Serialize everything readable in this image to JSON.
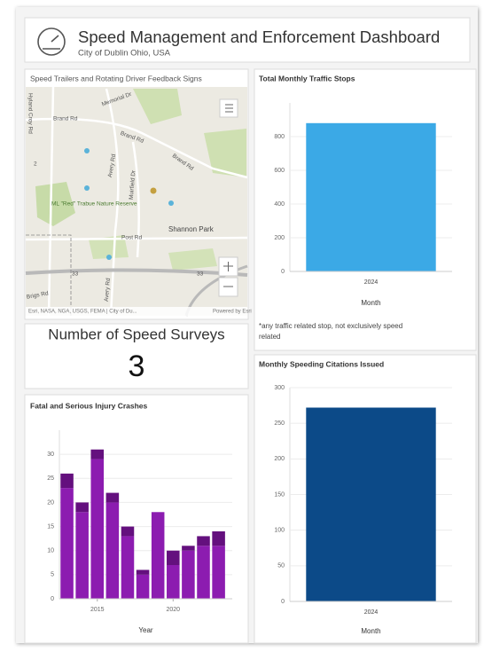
{
  "header": {
    "title": "Speed Management and Enforcement Dashboard",
    "subtitle": "City of Dublin Ohio, USA"
  },
  "map": {
    "title": "Speed Trailers and Rotating Driver Feedback Signs",
    "labels": [
      "Memorial Dr",
      "Brand Rd",
      "Brand Rd",
      "Brand Rd",
      "Hyland Croy Rd",
      "Avery Rd",
      "Muirfield Dr",
      "ML \"Red\" Trabue Nature Reserve",
      "Shannon Park",
      "Post Rd",
      "33",
      "33",
      "Avery Rd",
      "Brigs Rd",
      "2"
    ],
    "attribution": "Esri, NASA, NGA, USGS, FEMA | City of Du...",
    "powered_by": "Powered by Esri"
  },
  "indicator": {
    "title": "Number of Speed Surveys",
    "value": 3
  },
  "chart_data": [
    {
      "type": "bar",
      "title": "Total Monthly Traffic Stops",
      "categories": [
        "2024"
      ],
      "values": [
        880
      ],
      "color": "#3ba9e6",
      "ylim": [
        0,
        1000
      ],
      "yticks": [
        0,
        200,
        400,
        600,
        800
      ],
      "x_label": "Month",
      "grid": true,
      "note": "*any traffic related stop, not exclusively speed related"
    },
    {
      "type": "bar",
      "title": "Monthly Speeding Citations Issued",
      "categories": [
        "2024"
      ],
      "values": [
        272
      ],
      "color": "#0c4a88",
      "ylim": [
        0,
        300
      ],
      "yticks": [
        0,
        50,
        100,
        150,
        200,
        250,
        300
      ],
      "x_label": "Month",
      "grid": true
    },
    {
      "type": "bar",
      "title": "Fatal and Serious Injury Crashes",
      "x": [
        2013,
        2014,
        2015,
        2016,
        2017,
        2018,
        2019,
        2020,
        2021,
        2022,
        2023
      ],
      "series": [
        {
          "color": "#8c1cb0",
          "values": [
            23,
            18,
            29,
            20,
            13,
            5,
            18,
            7,
            10,
            11,
            11
          ]
        },
        {
          "color": "#64107e",
          "values": [
            3,
            2,
            2,
            2,
            2,
            1,
            0,
            3,
            1,
            2,
            3
          ]
        }
      ],
      "xlim": [
        2012.5,
        2023.9
      ],
      "xticks": [
        2015,
        2020
      ],
      "ylim": [
        0,
        35
      ],
      "yticks": [
        0,
        5,
        10,
        15,
        20,
        25,
        30
      ],
      "x_label": "Year",
      "grid": true
    }
  ]
}
